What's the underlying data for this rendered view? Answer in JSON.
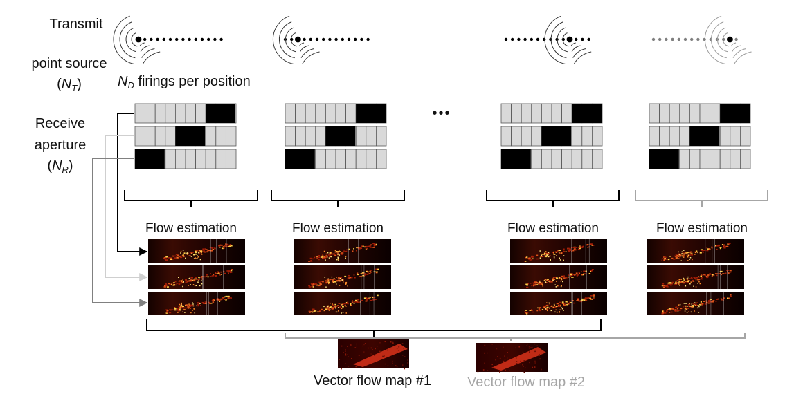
{
  "labels": {
    "transmit_line1": "Transmit",
    "transmit_line2": "point source",
    "transmit_sym_open": "(",
    "transmit_sym": "N",
    "transmit_sub": "T",
    "transmit_sym_close": ")",
    "firings_sym": "N",
    "firings_sub": "D",
    "firings_text": " firings per position",
    "receive_line1": "Receive",
    "receive_line2": "aperture",
    "receive_sym_open": "(",
    "receive_sym": "N",
    "receive_sub": "R",
    "receive_sym_close": ")",
    "ellipsis": "•••",
    "flow_estimation": "Flow estimation",
    "vector_map_1": "Vector flow map #1",
    "vector_map_2": "Vector flow map #2"
  },
  "groups": [
    {
      "source_index": 0,
      "aperture_active": [
        7,
        4,
        0
      ],
      "style": "black"
    },
    {
      "source_index": 2,
      "aperture_active": [
        7,
        4,
        0
      ],
      "style": "black"
    },
    {
      "source_index": 10,
      "aperture_active": [
        7,
        4,
        0
      ],
      "style": "black"
    },
    {
      "source_index": 12,
      "aperture_active": [
        7,
        4,
        0
      ],
      "style": "grey"
    }
  ],
  "colors": {
    "black": "#000000",
    "grey": "#a6a6a6",
    "light_grey": "#cfcfcf",
    "cell_fill": "#d9d9d9",
    "mid_grey": "#808080"
  }
}
